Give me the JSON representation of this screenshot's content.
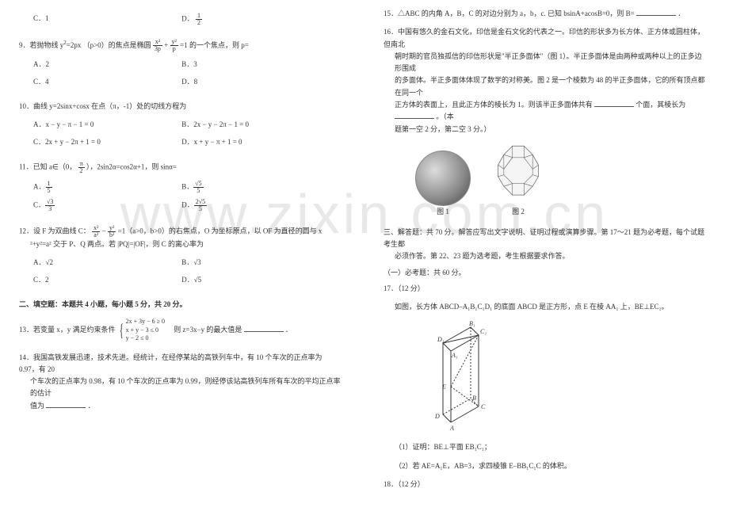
{
  "watermark": "www.zixin.com.cn",
  "colors": {
    "text": "#333333",
    "bg": "#ffffff",
    "wm": "#e8e8e8",
    "line": "#555555"
  },
  "fontsize": {
    "body": 9,
    "watermark": 70
  },
  "left": {
    "q8opts": {
      "c": "C．1",
      "d_pre": "D．",
      "d_num": "1",
      "d_den": "2"
    },
    "q9": {
      "stem_a": "9．若抛物线 y",
      "stem_b": "=2px （p>0）的焦点是椭圆 ",
      "fr1n": "x²",
      "fr1d": "3p",
      "plus": " + ",
      "fr2n": "y²",
      "fr2d": "p",
      "stem_c": " =1 的一个焦点，则 p=",
      "a": "A．2",
      "b": "B．3",
      "c": "C．4",
      "d": "D．8"
    },
    "q10": {
      "stem": "10．曲线 y=2sinx+cosx 在点（π，-1）处的切线方程为",
      "a": "A．x − y − π − 1 = 0",
      "b": "B．2x − y − 2π − 1 = 0",
      "c": "C．2x + y − 2π + 1 = 0",
      "d": "D．x + y − π + 1 = 0"
    },
    "q11": {
      "stem_a": "11．已知 a∈（0，",
      "stem_num": "π",
      "stem_den": "2",
      "stem_b": "），2sin2α=cos2α+1，则 sinα=",
      "a_pre": "A．",
      "a_num": "1",
      "a_den": "5",
      "b_pre": "B．",
      "b_num": "√5",
      "b_den": "5",
      "c_pre": "C．",
      "c_num": "√3",
      "c_den": "3",
      "d_pre": "D．",
      "d_num": "2√5",
      "d_den": "5"
    },
    "q12": {
      "stem_a": "12．设 F 为双曲线 C：",
      "fr1n": "x²",
      "fr1d": "a²",
      "minus": " − ",
      "fr2n": "y²",
      "fr2d": "b²",
      "stem_b": " =1（a>0，b>0）的右焦点，O 为坐标原点，以 OF 为直径的圆与 x",
      "stem_c": "²+y²=a² 交于 P、Q 两点。若 |PQ|=|OF|，则 C 的离心率为",
      "a": "A．√2",
      "b": "B．√3",
      "c": "C．2",
      "d": "D．√5"
    },
    "sec2": "二、填空题：本题共 4 小题，每小题 5 分，共 20 分。",
    "q13": {
      "stem_a": "13．若变量 x，y 满足约束条件 ",
      "l1": "2x + 3y − 6 ≥ 0",
      "l2": "x + y − 3 ≤ 0",
      "l3": "y − 2 ≤ 0",
      "stem_b": "　则 z=3x−y 的最大值是",
      "end": "．"
    },
    "q14": {
      "line1": "14．我国高铁发展迅速，技术先进。经统计，在经停某站的高铁列车中，有 10 个车次的正点率为 0.97，有 20",
      "line2": "个车次的正点率为 0.98，有 10 个车次的正点率为 0.99，则经停该站高铁列车所有车次的平均正点率的估计",
      "line3": "值为",
      "end": "．"
    }
  },
  "right": {
    "q15": {
      "stem": "15．△ABC 的内角 A，B，C 的对边分别为 a，b，c. 已知 bsinA+acosB=0，则 B=",
      "end": "．"
    },
    "q16": {
      "l1": "16．中国有悠久的金石文化，印信是金石文化的代表之一。印信的形状多为长方体、正方体或圆柱体，但南北",
      "l2": "朝时期的官员独孤信的印信形状是\"半正多面体\"（图 1）。半正多面体是由两种或两种以上的正多边形围成",
      "l3": "的多面体。半正多面体体现了数学的对称美。图 2 是一个棱数为 48 的半正多面体，它的所有顶点都在同一个",
      "l4": "正方体的表面上，且此正方体的棱长为 1。则该半正多面体共有",
      "l4b": "个面，其棱长为",
      "l4c": "。（本",
      "l5": "题第一空 2 分，第二空 3 分。）",
      "fig1": "图 1",
      "fig2": "图 2"
    },
    "sec3a": "三、解答题：共 70 分。解答应写出文字说明、证明过程或演算步骤。第 17～21 题为必考题，每个试题考生都",
    "sec3b": "必须作答。第 22、23 题为选考题，考生根据要求作答。",
    "sub1": "（一）必考题：共 60 分。",
    "q17": {
      "num": "17．（12 分）",
      "stem": "如图，长方体 ABCD–A₁B₁C₁D₁ 的底面 ABCD 是正方形，点 E 在棱 AA₁ 上，BE⊥EC₁。",
      "p1": "（1）证明：BE⊥平面 EB₁C₁；",
      "p2": "（2）若 AE=A₁E，AB=3，求四棱锥 E–BB₁C₁C 的体积。"
    },
    "q18": "18．（12 分）"
  },
  "fig2_poly": {
    "outer": "45,5 65,5 80,20 90,38 90,58 80,75 65,90 45,90 30,75 20,58 20,38 30,20",
    "inner_lines": [
      "45,5 45,25 30,20",
      "65,5 65,25 80,20",
      "45,25 65,25",
      "30,20 30,45 20,38",
      "80,20 80,45 90,38",
      "20,58 30,55 30,45",
      "90,58 80,55 80,45",
      "30,75 45,70 45,90",
      "80,75 65,70 65,90",
      "45,70 65,70",
      "30,55 45,70",
      "80,55 65,70",
      "45,25 30,45",
      "65,25 80,45",
      "30,45 45,25"
    ],
    "stroke": "#666666",
    "fill": "#f5f5f5"
  },
  "cuboid": {
    "labels": {
      "D1": "D₁",
      "C1": "C₁",
      "A1": "A₁",
      "B1": "B₁",
      "E": "E",
      "D": "D",
      "C": "C",
      "A": "A",
      "B": "B"
    },
    "stroke": "#333333"
  }
}
